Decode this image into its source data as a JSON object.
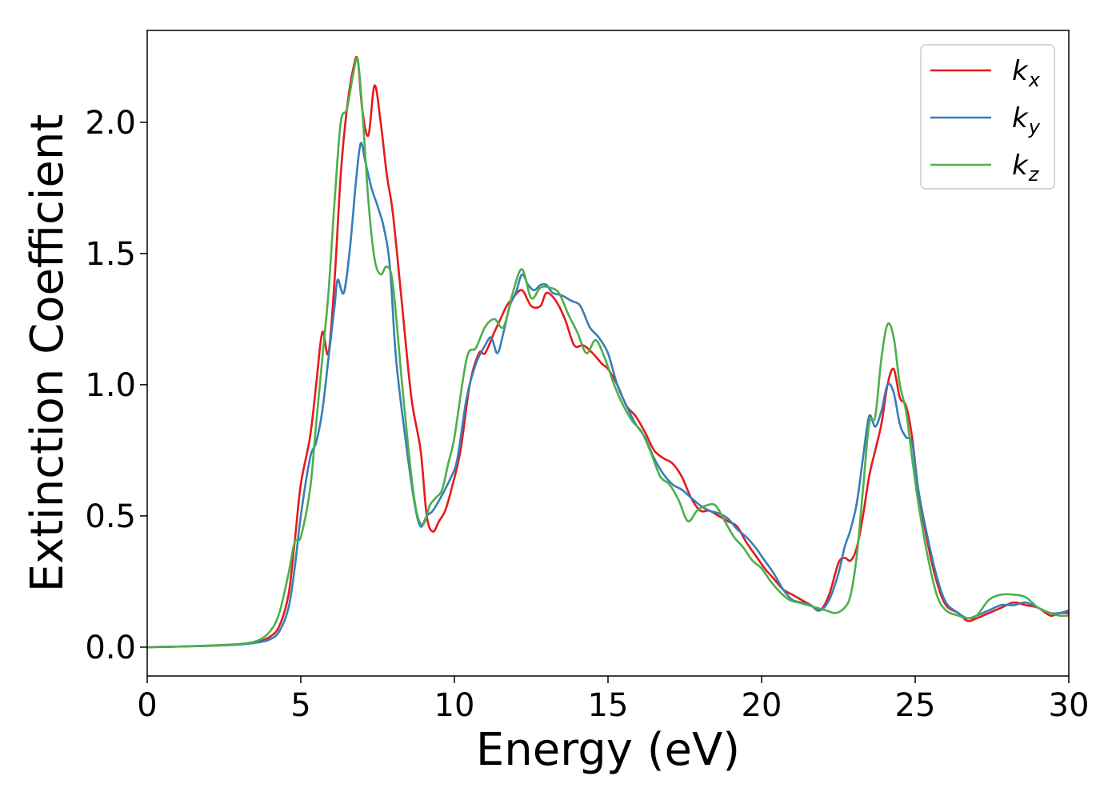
{
  "chart_data": {
    "type": "line",
    "title": "",
    "xlabel": "Energy (eV)",
    "ylabel": "Extinction Coefficient",
    "xlim": [
      0,
      30
    ],
    "ylim": [
      -0.11,
      2.35
    ],
    "xticks": [
      0,
      5,
      10,
      15,
      20,
      25,
      30
    ],
    "yticks": [
      0.0,
      0.5,
      1.0,
      1.5,
      2.0
    ],
    "xtick_labels": [
      "0",
      "5",
      "10",
      "15",
      "20",
      "25",
      "30"
    ],
    "ytick_labels": [
      "0.0",
      "0.5",
      "1.0",
      "1.5",
      "2.0"
    ],
    "grid": false,
    "legend_position": "top-right",
    "series": [
      {
        "name": "k",
        "subscript": "x",
        "color": "#e41a1c",
        "points": [
          [
            0,
            0
          ],
          [
            1,
            0.002
          ],
          [
            2,
            0.005
          ],
          [
            3,
            0.01
          ],
          [
            3.6,
            0.02
          ],
          [
            4,
            0.04
          ],
          [
            4.3,
            0.08
          ],
          [
            4.6,
            0.2
          ],
          [
            4.8,
            0.4
          ],
          [
            5.0,
            0.62
          ],
          [
            5.3,
            0.8
          ],
          [
            5.5,
            1.0
          ],
          [
            5.7,
            1.2
          ],
          [
            5.9,
            1.12
          ],
          [
            6.1,
            1.4
          ],
          [
            6.3,
            1.8
          ],
          [
            6.5,
            2.05
          ],
          [
            6.7,
            2.2
          ],
          [
            6.85,
            2.24
          ],
          [
            7.0,
            2.05
          ],
          [
            7.2,
            1.95
          ],
          [
            7.4,
            2.14
          ],
          [
            7.6,
            2.0
          ],
          [
            7.8,
            1.8
          ],
          [
            8.0,
            1.65
          ],
          [
            8.3,
            1.3
          ],
          [
            8.6,
            0.95
          ],
          [
            8.9,
            0.75
          ],
          [
            9.1,
            0.5
          ],
          [
            9.3,
            0.44
          ],
          [
            9.5,
            0.48
          ],
          [
            9.7,
            0.52
          ],
          [
            9.9,
            0.6
          ],
          [
            10.2,
            0.75
          ],
          [
            10.5,
            1.0
          ],
          [
            10.8,
            1.12
          ],
          [
            11.0,
            1.12
          ],
          [
            11.3,
            1.2
          ],
          [
            11.5,
            1.25
          ],
          [
            11.7,
            1.3
          ],
          [
            11.9,
            1.33
          ],
          [
            12.2,
            1.36
          ],
          [
            12.5,
            1.3
          ],
          [
            12.8,
            1.3
          ],
          [
            13.0,
            1.35
          ],
          [
            13.3,
            1.32
          ],
          [
            13.6,
            1.25
          ],
          [
            13.9,
            1.15
          ],
          [
            14.2,
            1.15
          ],
          [
            14.5,
            1.12
          ],
          [
            14.8,
            1.08
          ],
          [
            15.0,
            1.06
          ],
          [
            15.3,
            1.0
          ],
          [
            15.6,
            0.92
          ],
          [
            15.9,
            0.88
          ],
          [
            16.2,
            0.82
          ],
          [
            16.5,
            0.75
          ],
          [
            16.8,
            0.72
          ],
          [
            17.1,
            0.7
          ],
          [
            17.4,
            0.65
          ],
          [
            17.7,
            0.57
          ],
          [
            18.0,
            0.52
          ],
          [
            18.3,
            0.52
          ],
          [
            18.6,
            0.5
          ],
          [
            18.9,
            0.48
          ],
          [
            19.2,
            0.46
          ],
          [
            19.5,
            0.4
          ],
          [
            19.8,
            0.35
          ],
          [
            20.1,
            0.3
          ],
          [
            20.4,
            0.26
          ],
          [
            20.7,
            0.22
          ],
          [
            21.0,
            0.2
          ],
          [
            21.3,
            0.18
          ],
          [
            21.6,
            0.16
          ],
          [
            21.9,
            0.14
          ],
          [
            22.2,
            0.2
          ],
          [
            22.5,
            0.32
          ],
          [
            22.7,
            0.34
          ],
          [
            22.9,
            0.33
          ],
          [
            23.1,
            0.38
          ],
          [
            23.3,
            0.5
          ],
          [
            23.5,
            0.65
          ],
          [
            23.7,
            0.75
          ],
          [
            23.9,
            0.85
          ],
          [
            24.1,
            1.0
          ],
          [
            24.3,
            1.06
          ],
          [
            24.5,
            0.95
          ],
          [
            24.7,
            0.92
          ],
          [
            24.9,
            0.8
          ],
          [
            25.1,
            0.6
          ],
          [
            25.4,
            0.4
          ],
          [
            25.7,
            0.25
          ],
          [
            26.0,
            0.16
          ],
          [
            26.4,
            0.13
          ],
          [
            26.7,
            0.1
          ],
          [
            27.0,
            0.11
          ],
          [
            27.4,
            0.13
          ],
          [
            27.8,
            0.15
          ],
          [
            28.2,
            0.17
          ],
          [
            28.6,
            0.16
          ],
          [
            29.0,
            0.15
          ],
          [
            29.4,
            0.12
          ],
          [
            29.7,
            0.13
          ],
          [
            30.0,
            0.13
          ]
        ]
      },
      {
        "name": "k",
        "subscript": "y",
        "color": "#377eb8",
        "points": [
          [
            0,
            0
          ],
          [
            1,
            0.002
          ],
          [
            2,
            0.005
          ],
          [
            3,
            0.01
          ],
          [
            3.6,
            0.018
          ],
          [
            4,
            0.03
          ],
          [
            4.3,
            0.06
          ],
          [
            4.6,
            0.15
          ],
          [
            4.8,
            0.3
          ],
          [
            5.0,
            0.5
          ],
          [
            5.3,
            0.72
          ],
          [
            5.5,
            0.78
          ],
          [
            5.7,
            0.9
          ],
          [
            5.9,
            1.1
          ],
          [
            6.1,
            1.3
          ],
          [
            6.2,
            1.4
          ],
          [
            6.4,
            1.35
          ],
          [
            6.6,
            1.52
          ],
          [
            6.8,
            1.78
          ],
          [
            6.95,
            1.92
          ],
          [
            7.1,
            1.85
          ],
          [
            7.3,
            1.75
          ],
          [
            7.5,
            1.68
          ],
          [
            7.7,
            1.6
          ],
          [
            7.9,
            1.45
          ],
          [
            8.1,
            1.1
          ],
          [
            8.4,
            0.8
          ],
          [
            8.7,
            0.55
          ],
          [
            8.9,
            0.46
          ],
          [
            9.1,
            0.5
          ],
          [
            9.3,
            0.52
          ],
          [
            9.6,
            0.58
          ],
          [
            9.9,
            0.65
          ],
          [
            10.1,
            0.72
          ],
          [
            10.4,
            0.95
          ],
          [
            10.7,
            1.08
          ],
          [
            11.0,
            1.15
          ],
          [
            11.2,
            1.18
          ],
          [
            11.4,
            1.12
          ],
          [
            11.6,
            1.2
          ],
          [
            11.8,
            1.3
          ],
          [
            12.0,
            1.35
          ],
          [
            12.2,
            1.42
          ],
          [
            12.4,
            1.38
          ],
          [
            12.6,
            1.36
          ],
          [
            12.8,
            1.38
          ],
          [
            13.0,
            1.38
          ],
          [
            13.2,
            1.35
          ],
          [
            13.5,
            1.34
          ],
          [
            13.8,
            1.32
          ],
          [
            14.1,
            1.3
          ],
          [
            14.4,
            1.22
          ],
          [
            14.7,
            1.18
          ],
          [
            15.0,
            1.12
          ],
          [
            15.3,
            1.0
          ],
          [
            15.6,
            0.92
          ],
          [
            15.9,
            0.85
          ],
          [
            16.2,
            0.8
          ],
          [
            16.5,
            0.72
          ],
          [
            16.8,
            0.66
          ],
          [
            17.1,
            0.62
          ],
          [
            17.4,
            0.6
          ],
          [
            17.7,
            0.57
          ],
          [
            18.0,
            0.54
          ],
          [
            18.3,
            0.52
          ],
          [
            18.6,
            0.51
          ],
          [
            18.9,
            0.49
          ],
          [
            19.2,
            0.45
          ],
          [
            19.5,
            0.42
          ],
          [
            19.8,
            0.38
          ],
          [
            20.1,
            0.33
          ],
          [
            20.4,
            0.28
          ],
          [
            20.7,
            0.22
          ],
          [
            21.0,
            0.18
          ],
          [
            21.3,
            0.17
          ],
          [
            21.6,
            0.16
          ],
          [
            21.9,
            0.14
          ],
          [
            22.2,
            0.18
          ],
          [
            22.5,
            0.28
          ],
          [
            22.7,
            0.38
          ],
          [
            22.9,
            0.45
          ],
          [
            23.1,
            0.55
          ],
          [
            23.3,
            0.72
          ],
          [
            23.5,
            0.88
          ],
          [
            23.7,
            0.84
          ],
          [
            23.9,
            0.9
          ],
          [
            24.1,
            1.0
          ],
          [
            24.3,
            0.97
          ],
          [
            24.5,
            0.85
          ],
          [
            24.7,
            0.8
          ],
          [
            24.9,
            0.78
          ],
          [
            25.1,
            0.6
          ],
          [
            25.4,
            0.42
          ],
          [
            25.7,
            0.27
          ],
          [
            26.0,
            0.17
          ],
          [
            26.4,
            0.13
          ],
          [
            26.7,
            0.11
          ],
          [
            27.0,
            0.12
          ],
          [
            27.4,
            0.14
          ],
          [
            27.8,
            0.16
          ],
          [
            28.2,
            0.16
          ],
          [
            28.6,
            0.17
          ],
          [
            29.0,
            0.15
          ],
          [
            29.4,
            0.13
          ],
          [
            29.7,
            0.13
          ],
          [
            30.0,
            0.14
          ]
        ]
      },
      {
        "name": "k",
        "subscript": "z",
        "color": "#4daf4a",
        "points": [
          [
            0,
            0
          ],
          [
            1,
            0.002
          ],
          [
            2,
            0.006
          ],
          [
            3,
            0.012
          ],
          [
            3.6,
            0.025
          ],
          [
            4,
            0.06
          ],
          [
            4.3,
            0.13
          ],
          [
            4.6,
            0.28
          ],
          [
            4.8,
            0.4
          ],
          [
            5.0,
            0.42
          ],
          [
            5.3,
            0.6
          ],
          [
            5.5,
            0.85
          ],
          [
            5.7,
            1.1
          ],
          [
            5.9,
            1.35
          ],
          [
            6.1,
            1.7
          ],
          [
            6.3,
            2.0
          ],
          [
            6.5,
            2.05
          ],
          [
            6.7,
            2.18
          ],
          [
            6.85,
            2.24
          ],
          [
            7.0,
            2.05
          ],
          [
            7.2,
            1.7
          ],
          [
            7.4,
            1.48
          ],
          [
            7.6,
            1.42
          ],
          [
            7.8,
            1.45
          ],
          [
            8.0,
            1.38
          ],
          [
            8.3,
            1.0
          ],
          [
            8.6,
            0.65
          ],
          [
            8.8,
            0.5
          ],
          [
            9.0,
            0.47
          ],
          [
            9.2,
            0.54
          ],
          [
            9.4,
            0.57
          ],
          [
            9.6,
            0.6
          ],
          [
            9.8,
            0.7
          ],
          [
            10.0,
            0.8
          ],
          [
            10.4,
            1.1
          ],
          [
            10.7,
            1.14
          ],
          [
            11.0,
            1.22
          ],
          [
            11.3,
            1.25
          ],
          [
            11.6,
            1.22
          ],
          [
            11.9,
            1.35
          ],
          [
            12.2,
            1.44
          ],
          [
            12.5,
            1.33
          ],
          [
            12.8,
            1.37
          ],
          [
            13.1,
            1.37
          ],
          [
            13.4,
            1.35
          ],
          [
            13.7,
            1.27
          ],
          [
            14.0,
            1.2
          ],
          [
            14.3,
            1.12
          ],
          [
            14.6,
            1.17
          ],
          [
            14.9,
            1.1
          ],
          [
            15.2,
            1.0
          ],
          [
            15.5,
            0.92
          ],
          [
            15.8,
            0.86
          ],
          [
            16.1,
            0.82
          ],
          [
            16.4,
            0.74
          ],
          [
            16.7,
            0.65
          ],
          [
            17.0,
            0.62
          ],
          [
            17.3,
            0.56
          ],
          [
            17.6,
            0.48
          ],
          [
            17.9,
            0.52
          ],
          [
            18.2,
            0.54
          ],
          [
            18.5,
            0.54
          ],
          [
            18.8,
            0.48
          ],
          [
            19.1,
            0.42
          ],
          [
            19.4,
            0.38
          ],
          [
            19.7,
            0.33
          ],
          [
            20.0,
            0.3
          ],
          [
            20.3,
            0.25
          ],
          [
            20.6,
            0.21
          ],
          [
            20.9,
            0.18
          ],
          [
            21.2,
            0.17
          ],
          [
            21.5,
            0.16
          ],
          [
            21.8,
            0.15
          ],
          [
            22.1,
            0.14
          ],
          [
            22.4,
            0.13
          ],
          [
            22.7,
            0.15
          ],
          [
            22.9,
            0.2
          ],
          [
            23.1,
            0.35
          ],
          [
            23.3,
            0.6
          ],
          [
            23.5,
            0.85
          ],
          [
            23.7,
            0.88
          ],
          [
            23.9,
            1.1
          ],
          [
            24.1,
            1.23
          ],
          [
            24.3,
            1.18
          ],
          [
            24.5,
            1.0
          ],
          [
            24.7,
            0.9
          ],
          [
            24.9,
            0.72
          ],
          [
            25.1,
            0.55
          ],
          [
            25.4,
            0.35
          ],
          [
            25.7,
            0.2
          ],
          [
            26.0,
            0.14
          ],
          [
            26.4,
            0.12
          ],
          [
            26.7,
            0.11
          ],
          [
            27.0,
            0.12
          ],
          [
            27.4,
            0.18
          ],
          [
            27.8,
            0.2
          ],
          [
            28.2,
            0.2
          ],
          [
            28.6,
            0.19
          ],
          [
            29.0,
            0.15
          ],
          [
            29.4,
            0.13
          ],
          [
            29.7,
            0.12
          ],
          [
            30.0,
            0.12
          ]
        ]
      }
    ]
  }
}
